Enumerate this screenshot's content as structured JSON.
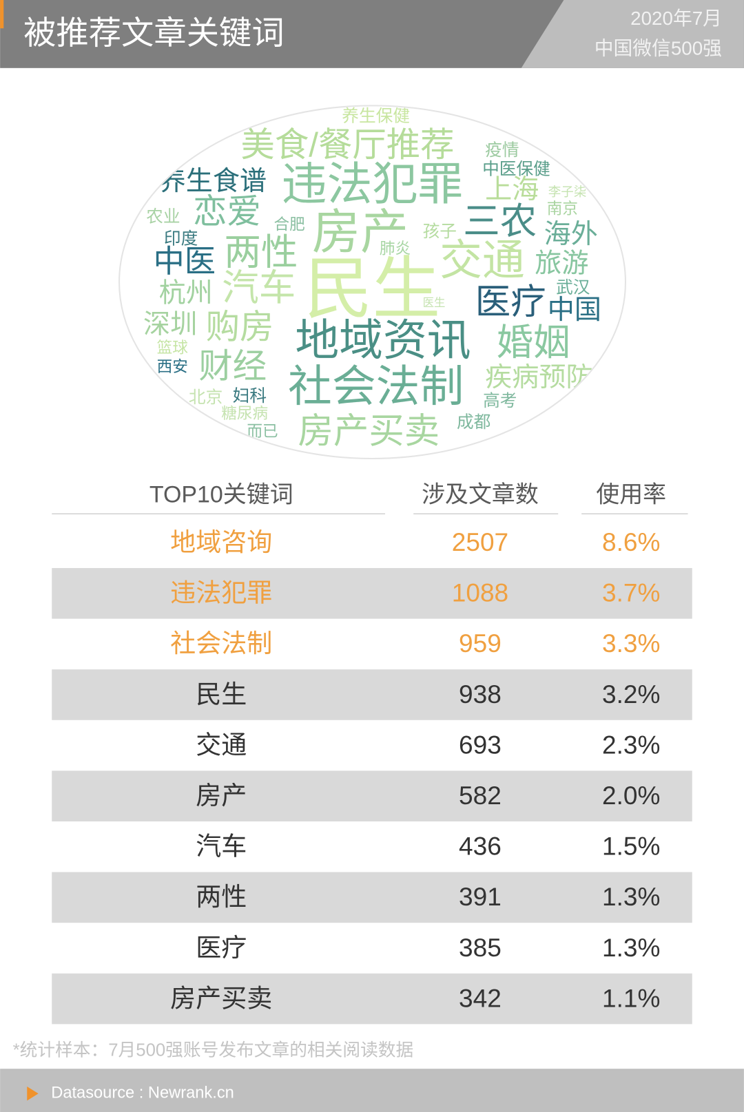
{
  "header": {
    "title": "被推荐文章关键词",
    "date": "2020年7月",
    "subtitle": "中国微信500强"
  },
  "word_cloud": [
    "养生保健",
    "美食/餐厅推荐",
    "疫情",
    "中医保健",
    "养生食谱",
    "违法犯罪",
    "上海",
    "李子柒",
    "农业",
    "恋爱",
    "合肥",
    "房产",
    "孩子",
    "三农",
    "南京",
    "海外",
    "印度",
    "中医",
    "两性",
    "肺炎",
    "交通",
    "旅游",
    "杭州",
    "汽车",
    "民生",
    "武汉",
    "医疗",
    "中国",
    "医生",
    "深圳",
    "购房",
    "地域资讯",
    "婚姻",
    "篮球",
    "西安",
    "财经",
    "社会法制",
    "疾病预防",
    "北京",
    "妇科",
    "高考",
    "糖尿病",
    "而已",
    "房产买卖",
    "成都"
  ],
  "table": {
    "headers": [
      "TOP10关键词",
      "涉及文章数",
      "使用率"
    ],
    "rows": [
      [
        "地域咨询",
        2507,
        "8.6%"
      ],
      [
        "违法犯罪",
        1088,
        "3.7%"
      ],
      [
        "社会法制",
        959,
        "3.3%"
      ],
      [
        "民生",
        938,
        "3.2%"
      ],
      [
        "交通",
        693,
        "2.3%"
      ],
      [
        "房产",
        582,
        "2.0%"
      ],
      [
        "汽车",
        436,
        "1.5%"
      ],
      [
        "两性",
        391,
        "1.3%"
      ],
      [
        "医疗",
        385,
        "1.3%"
      ],
      [
        "房产买卖",
        342,
        "1.1%"
      ]
    ]
  },
  "footnote": "*统计样本：7月500强账号发布文章的相关阅读数据",
  "footer": "Datasource : Newrank.cn"
}
